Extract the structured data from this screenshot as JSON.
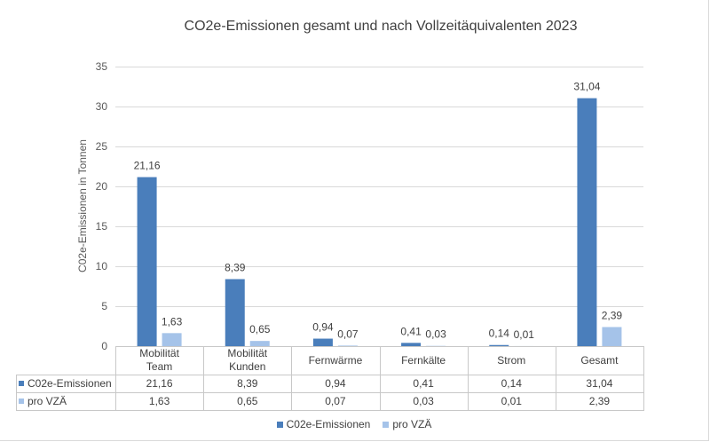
{
  "chart_data": {
    "type": "bar",
    "title": "CO2e-Emissionen gesamt und nach Vollzeitäquivalenten 2023",
    "ylabel": "C02e-Emissionen in Tonnen",
    "categories": [
      "Mobilität Team",
      "Mobilität Kunden",
      "Fernwärme",
      "Fernkälte",
      "Strom",
      "Gesamt"
    ],
    "series": [
      {
        "name": "C02e-Emissionen",
        "color": "#4a7ebb",
        "values": [
          21.16,
          8.39,
          0.94,
          0.41,
          0.14,
          31.04
        ]
      },
      {
        "name": "pro VZÄ",
        "color": "#a5c3e9",
        "values": [
          1.63,
          0.65,
          0.07,
          0.03,
          0.01,
          2.39
        ]
      }
    ],
    "ylim": [
      0,
      35
    ],
    "yticks": [
      0,
      5,
      10,
      15,
      20,
      25,
      30,
      35
    ],
    "grid": true,
    "data_labels": true,
    "data_table": true,
    "legend": "bottom"
  }
}
